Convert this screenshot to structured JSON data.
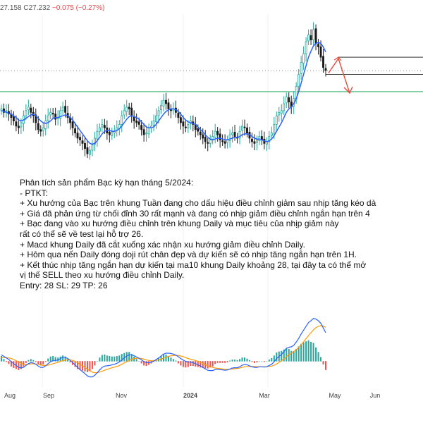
{
  "header": {
    "ohlc_text": "27.158  C27.232",
    "change_text": "−0.075 (−0.27%)"
  },
  "analysis": {
    "lines": [
      "Phân tích sản phẩm Bạc kỳ hạn tháng 5/2024:",
      "- PTKT:",
      "+ Xu hướng của Bạc trên khung Tuần đang cho dấu hiệu điều chỉnh giảm sau nhịp tăng kéo dà",
      "+ Giá đã phản ứng từ chối đỉnh 30 rất mạnh và đang có nhịp giảm điều chỉnh ngắn hạn trên 4",
      "+ Bạc đang vào xu hướng điều chỉnh trên khung Daily và mục tiêu của nhịp giảm này",
      "rất có thể sẽ về test lại hỗ trợ 26.",
      "+ Macd khung Daily đã cắt xuống xác nhận xu hướng giảm điều chỉnh Daily.",
      "+ Hôm qua nến Daily đóng doji rút chân đẹp và dự kiến sẽ có nhịp tăng ngắn hạn trên 1H.",
      "+ Kết thúc nhịp tăng ngắn hạn dự kiến tại ma10 khung Daily khoảng 28, tại đây ta có thể mở",
      "vị thế SELL theo xu hướng điều chỉnh Daily.",
      "Entry: 28   SL: 29   TP: 26"
    ]
  },
  "chart_data": {
    "type": "candlestick",
    "x_axis": {
      "tick_labels": [
        "Aug",
        "Sep",
        "Nov",
        "2024",
        "Mar",
        "May",
        "Jun"
      ]
    },
    "price_axis": {
      "ylim": [
        21.5,
        30.5
      ]
    },
    "colors": {
      "up": "#26a69a",
      "down": "#1a1a1a",
      "ma": "#2962ff",
      "support": "#3cb371",
      "arrow": "#e74c3c",
      "macd": "#2962ff",
      "signal": "#ff9800",
      "hist_up": "#26a69a",
      "hist_down": "#ef5350"
    },
    "support_level": 26.0,
    "dotted_level": 27.2,
    "entry_box": {
      "top": 28.0,
      "bottom": 27.0
    },
    "closes": [
      25.0,
      24.8,
      24.9,
      24.7,
      24.5,
      24.3,
      24.0,
      23.9,
      24.2,
      24.6,
      24.9,
      25.1,
      24.8,
      24.6,
      24.2,
      23.8,
      23.7,
      23.9,
      24.3,
      24.6,
      24.8,
      24.7,
      24.4,
      24.5,
      24.9,
      25.1,
      24.8,
      24.5,
      24.2,
      23.9,
      23.6,
      23.3,
      23.2,
      23.0,
      22.7,
      22.4,
      22.6,
      22.9,
      23.3,
      23.7,
      23.9,
      24.1,
      23.9,
      23.6,
      23.5,
      23.6,
      23.7,
      23.9,
      24.1,
      24.6,
      24.9,
      25.1,
      25.0,
      24.6,
      24.3,
      24.2,
      24.1,
      23.8,
      23.5,
      23.6,
      23.9,
      24.0,
      24.3,
      24.6,
      24.9,
      25.2,
      25.5,
      25.3,
      25.0,
      24.9,
      25.0,
      24.8,
      24.5,
      24.2,
      24.0,
      23.9,
      24.1,
      24.3,
      24.1,
      23.8,
      23.7,
      23.5,
      23.3,
      23.1,
      23.0,
      23.2,
      23.4,
      23.7,
      23.5,
      23.2,
      23.1,
      23.0,
      23.2,
      23.5,
      23.6,
      23.4,
      23.3,
      23.7,
      24.0,
      23.9,
      23.6,
      23.3,
      23.1,
      23.0,
      23.2,
      23.4,
      23.2,
      23.0,
      23.1,
      23.4,
      23.6,
      24.1,
      24.6,
      24.8,
      24.9,
      25.3,
      25.7,
      25.4,
      25.1,
      25.6,
      26.3,
      27.0,
      27.7,
      28.2,
      28.9,
      29.3,
      29.0,
      29.6,
      28.8,
      28.6,
      28.0,
      27.4,
      27.23
    ],
    "ma10": [
      24.9,
      24.85,
      24.8,
      24.75,
      24.7,
      24.6,
      24.5,
      24.35,
      24.3,
      24.35,
      24.45,
      24.55,
      24.65,
      24.7,
      24.6,
      24.45,
      24.3,
      24.2,
      24.15,
      24.2,
      24.3,
      24.45,
      24.5,
      24.5,
      24.55,
      24.6,
      24.65,
      24.6,
      24.5,
      24.35,
      24.15,
      23.95,
      23.75,
      23.55,
      23.35,
      23.15,
      23.0,
      22.95,
      23.0,
      23.15,
      23.35,
      23.55,
      23.7,
      23.75,
      23.75,
      23.7,
      23.7,
      23.75,
      23.85,
      24.0,
      24.2,
      24.4,
      24.55,
      24.6,
      24.55,
      24.5,
      24.4,
      24.25,
      24.1,
      23.95,
      23.9,
      23.9,
      23.95,
      24.1,
      24.3,
      24.5,
      24.7,
      24.85,
      24.95,
      25.0,
      25.0,
      24.95,
      24.85,
      24.7,
      24.5,
      24.35,
      24.25,
      24.2,
      24.15,
      24.1,
      23.95,
      23.8,
      23.65,
      23.5,
      23.35,
      23.25,
      23.2,
      23.25,
      23.3,
      23.3,
      23.25,
      23.2,
      23.2,
      23.25,
      23.3,
      23.35,
      23.35,
      23.4,
      23.5,
      23.55,
      23.55,
      23.5,
      23.4,
      23.3,
      23.25,
      23.25,
      23.2,
      23.15,
      23.1,
      23.15,
      23.25,
      23.45,
      23.7,
      23.95,
      24.2,
      24.5,
      24.8,
      25.0,
      25.1,
      25.3,
      25.6,
      26.0,
      26.5,
      27.0,
      27.5,
      28.0,
      28.35,
      28.65,
      28.8,
      28.85,
      28.8,
      28.6,
      28.3
    ],
    "macd": {
      "macd": [
        0.2,
        0.15,
        0.1,
        0.05,
        -0.02,
        -0.08,
        -0.14,
        -0.2,
        -0.22,
        -0.2,
        -0.14,
        -0.08,
        -0.05,
        -0.06,
        -0.1,
        -0.16,
        -0.2,
        -0.2,
        -0.15,
        -0.08,
        -0.02,
        0.02,
        0.02,
        0.03,
        0.08,
        0.12,
        0.12,
        0.08,
        0.02,
        -0.05,
        -0.12,
        -0.2,
        -0.27,
        -0.33,
        -0.4,
        -0.47,
        -0.5,
        -0.5,
        -0.45,
        -0.37,
        -0.28,
        -0.2,
        -0.16,
        -0.15,
        -0.14,
        -0.12,
        -0.1,
        -0.07,
        -0.03,
        0.04,
        0.1,
        0.16,
        0.2,
        0.2,
        0.17,
        0.13,
        0.09,
        0.04,
        -0.02,
        -0.05,
        -0.05,
        -0.03,
        0.0,
        0.05,
        0.1,
        0.16,
        0.22,
        0.25,
        0.25,
        0.24,
        0.22,
        0.19,
        0.14,
        0.08,
        0.03,
        -0.01,
        -0.03,
        -0.03,
        -0.05,
        -0.08,
        -0.12,
        -0.16,
        -0.2,
        -0.25,
        -0.29,
        -0.3,
        -0.3,
        -0.27,
        -0.26,
        -0.27,
        -0.28,
        -0.29,
        -0.28,
        -0.25,
        -0.22,
        -0.21,
        -0.21,
        -0.18,
        -0.13,
        -0.11,
        -0.12,
        -0.15,
        -0.18,
        -0.2,
        -0.2,
        -0.18,
        -0.18,
        -0.19,
        -0.18,
        -0.14,
        -0.1,
        -0.02,
        0.08,
        0.15,
        0.21,
        0.3,
        0.4,
        0.44,
        0.45,
        0.5,
        0.6,
        0.72,
        0.86,
        0.98,
        1.1,
        1.22,
        1.28,
        1.35,
        1.33,
        1.28,
        1.2,
        1.05,
        0.9
      ],
      "signal": [
        0.1,
        0.11,
        0.11,
        0.1,
        0.08,
        0.05,
        0.01,
        -0.03,
        -0.07,
        -0.1,
        -0.11,
        -0.1,
        -0.09,
        -0.08,
        -0.09,
        -0.1,
        -0.12,
        -0.14,
        -0.14,
        -0.13,
        -0.11,
        -0.08,
        -0.06,
        -0.04,
        -0.01,
        0.01,
        0.03,
        0.04,
        0.04,
        0.02,
        -0.01,
        -0.05,
        -0.1,
        -0.15,
        -0.2,
        -0.26,
        -0.31,
        -0.35,
        -0.37,
        -0.37,
        -0.35,
        -0.32,
        -0.29,
        -0.26,
        -0.24,
        -0.21,
        -0.19,
        -0.17,
        -0.14,
        -0.1,
        -0.06,
        -0.02,
        0.02,
        0.06,
        0.08,
        0.09,
        0.09,
        0.08,
        0.06,
        0.04,
        0.02,
        0.01,
        0.01,
        0.02,
        0.04,
        0.06,
        0.09,
        0.12,
        0.15,
        0.17,
        0.18,
        0.18,
        0.18,
        0.16,
        0.14,
        0.11,
        0.08,
        0.06,
        0.04,
        0.02,
        -0.01,
        -0.04,
        -0.07,
        -0.11,
        -0.15,
        -0.18,
        -0.2,
        -0.22,
        -0.23,
        -0.24,
        -0.25,
        -0.26,
        -0.26,
        -0.26,
        -0.25,
        -0.24,
        -0.23,
        -0.22,
        -0.2,
        -0.18,
        -0.17,
        -0.17,
        -0.17,
        -0.17,
        -0.18,
        -0.18,
        -0.18,
        -0.18,
        -0.18,
        -0.17,
        -0.16,
        -0.13,
        -0.09,
        -0.04,
        0.01,
        0.07,
        0.14,
        0.2,
        0.25,
        0.3,
        0.36,
        0.43,
        0.52,
        0.61,
        0.71,
        0.81,
        0.9,
        0.99,
        1.06,
        1.1,
        1.12,
        1.11,
        1.07
      ]
    }
  }
}
